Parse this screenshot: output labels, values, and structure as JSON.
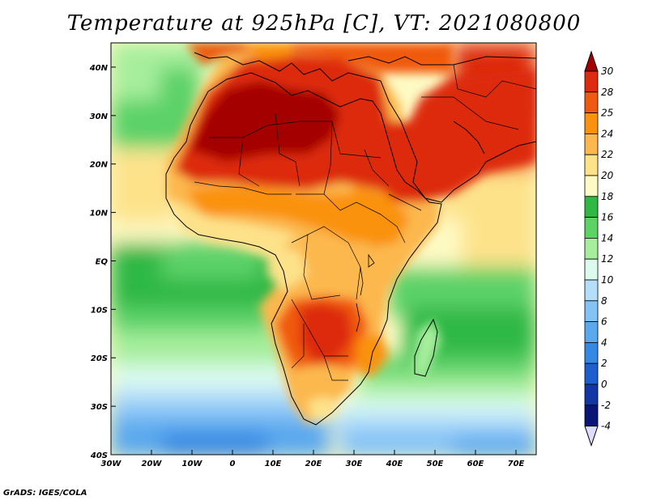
{
  "title": "Temperature at 925hPa [C], VT: 2021080800",
  "footer": "GrADS: IGES/COLA",
  "map": {
    "lon_range": [
      -30,
      75
    ],
    "lat_range": [
      -40,
      45
    ],
    "lon_ticks": [
      {
        "value": -30,
        "label": "30W"
      },
      {
        "value": -20,
        "label": "20W"
      },
      {
        "value": -10,
        "label": "10W"
      },
      {
        "value": 0,
        "label": "0"
      },
      {
        "value": 10,
        "label": "10E"
      },
      {
        "value": 20,
        "label": "20E"
      },
      {
        "value": 30,
        "label": "30E"
      },
      {
        "value": 40,
        "label": "40E"
      },
      {
        "value": 50,
        "label": "50E"
      },
      {
        "value": 60,
        "label": "60E"
      },
      {
        "value": 70,
        "label": "70E"
      }
    ],
    "lat_ticks": [
      {
        "value": 40,
        "label": "40N"
      },
      {
        "value": 30,
        "label": "30N"
      },
      {
        "value": 20,
        "label": "20N"
      },
      {
        "value": 10,
        "label": "10N"
      },
      {
        "value": 0,
        "label": "EQ"
      },
      {
        "value": -10,
        "label": "10S"
      },
      {
        "value": -20,
        "label": "20S"
      },
      {
        "value": -30,
        "label": "30S"
      },
      {
        "value": -40,
        "label": "40S"
      }
    ]
  },
  "colorbar": {
    "levels": [
      {
        "label": "30",
        "color": "#a50000"
      },
      {
        "label": "28",
        "color": "#dd2a10"
      },
      {
        "label": "25",
        "color": "#f05a10"
      },
      {
        "label": "24",
        "color": "#fa9210"
      },
      {
        "label": "22",
        "color": "#fcb84e"
      },
      {
        "label": "20",
        "color": "#fde28a"
      },
      {
        "label": "18",
        "color": "#fefac4"
      },
      {
        "label": "16",
        "color": "#2fb844"
      },
      {
        "label": "14",
        "color": "#5cd267"
      },
      {
        "label": "12",
        "color": "#a6ee9c"
      },
      {
        "label": "10",
        "color": "#dcfbee"
      },
      {
        "label": "8",
        "color": "#b4defa"
      },
      {
        "label": "6",
        "color": "#84c3f6"
      },
      {
        "label": "4",
        "color": "#5aa8ee"
      },
      {
        "label": "2",
        "color": "#3588e4"
      },
      {
        "label": "0",
        "color": "#1e5fd0"
      },
      {
        "label": "-2",
        "color": "#1336a5"
      },
      {
        "label": "-4",
        "color": "#0a1676"
      }
    ],
    "bottom_color": "#dedcfc"
  }
}
